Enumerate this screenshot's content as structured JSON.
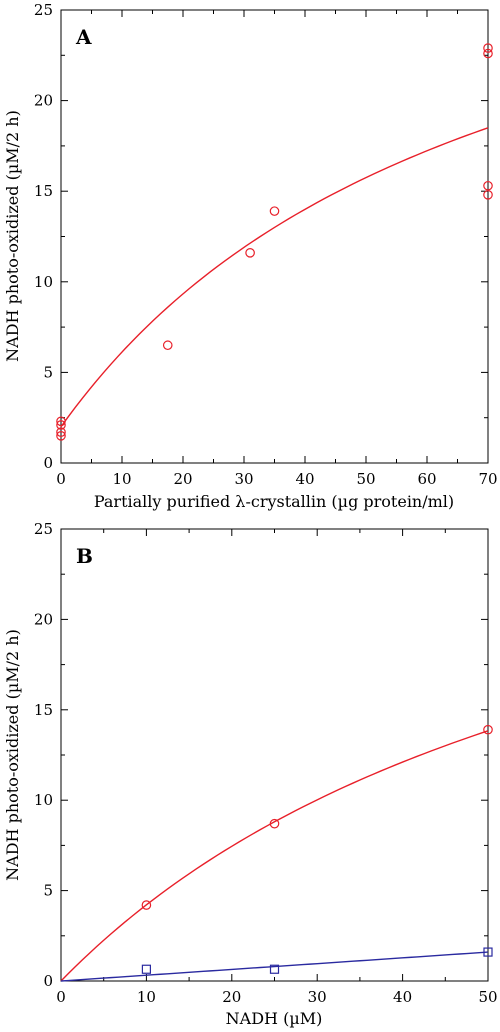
{
  "chart_data": [
    {
      "panel": "A",
      "type": "scatter",
      "xlabel": "Partially purified λ-crystallin (µg protein/ml)",
      "ylabel": "NADH photo-oxidized (µM/2 h)",
      "xlim": [
        0,
        70
      ],
      "ylim": [
        0,
        25
      ],
      "xticks": [
        0,
        10,
        20,
        30,
        40,
        50,
        60,
        70
      ],
      "yticks": [
        0,
        5,
        10,
        15,
        20,
        25
      ],
      "grid": false,
      "series": [
        {
          "marker": "circle",
          "color": "#e8202a",
          "points": [
            {
              "x": 0,
              "y": 1.5
            },
            {
              "x": 0,
              "y": 1.7
            },
            {
              "x": 0,
              "y": 2.1
            },
            {
              "x": 0,
              "y": 2.3
            },
            {
              "x": 17.5,
              "y": 6.5
            },
            {
              "x": 31,
              "y": 11.6
            },
            {
              "x": 35,
              "y": 13.9
            },
            {
              "x": 70,
              "y": 14.8
            },
            {
              "x": 70,
              "y": 15.3
            },
            {
              "x": 70,
              "y": 22.6
            },
            {
              "x": 70,
              "y": 22.9
            }
          ],
          "fit": {
            "model": "saturation",
            "y0": 2.0,
            "vmax": 33,
            "k": 70
          }
        }
      ]
    },
    {
      "panel": "B",
      "type": "scatter",
      "xlabel": "NADH (µM)",
      "ylabel": "NADH photo-oxidized (µM/2 h)",
      "xlim": [
        0,
        50
      ],
      "ylim": [
        0,
        25
      ],
      "xticks": [
        0,
        10,
        20,
        30,
        40,
        50
      ],
      "yticks": [
        0,
        5,
        10,
        15,
        20,
        25
      ],
      "grid": false,
      "series": [
        {
          "marker": "circle",
          "color": "#e8202a",
          "points": [
            {
              "x": 10,
              "y": 4.2
            },
            {
              "x": 25,
              "y": 8.7
            },
            {
              "x": 50,
              "y": 13.9
            }
          ],
          "fit": {
            "model": "saturation",
            "y0": 0,
            "vmax": 32.3,
            "k": 66.7
          }
        },
        {
          "marker": "square",
          "color": "#2a2aa0",
          "points": [
            {
              "x": 10,
              "y": 0.65
            },
            {
              "x": 25,
              "y": 0.65
            },
            {
              "x": 50,
              "y": 1.6
            }
          ],
          "fit": {
            "model": "linear",
            "intercept": 0,
            "slope": 0.032
          }
        }
      ]
    }
  ]
}
